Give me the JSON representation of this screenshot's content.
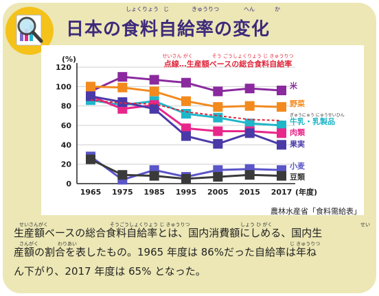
{
  "header": {
    "title": "日本の食料自給率の変化",
    "title_ruby": [
      "しょくりょう",
      "じ",
      "きゅうりつ",
      "へん",
      "か"
    ]
  },
  "source": "農林水産省「食料需給表」",
  "description": {
    "lines": [
      "生産額ベースの総合食料自給率とは、国内消費額にしめる、国内生",
      "産額の割合を表したもの。1965 年度は 86%だった自給率は年ね",
      "ん下がり、2017 年度は 65% となった。"
    ],
    "ruby": [
      [
        "せいさんがく",
        "そうごうしょくりょう じ きゅうりつ",
        "しょう ひ がく",
        "せい"
      ],
      [
        "さんがく",
        "わりあい",
        "じ きゅうりつ"
      ],
      []
    ]
  },
  "chart_data": {
    "type": "line",
    "title": "日本の食料自給率の変化",
    "ylabel": "(%)",
    "xlabel": "(年度)",
    "ylim": [
      0,
      120
    ],
    "yticks": [
      0,
      20,
      40,
      60,
      80,
      100,
      120
    ],
    "x": [
      1965,
      1975,
      1985,
      1995,
      2005,
      2015,
      2017
    ],
    "legend_note": "点線…生産額ベースの総合食料自給率",
    "legend_note_ruby": "せいさん がく　　　　そう ごうしょくりょう じ きゅうりつ",
    "series": [
      {
        "name": "米",
        "color": "#8a2a9e",
        "values": [
          95,
          110,
          107,
          104,
          95,
          98,
          96
        ]
      },
      {
        "name": "野菜",
        "color": "#f28a1e",
        "values": [
          100,
          99,
          95,
          85,
          79,
          80,
          79
        ]
      },
      {
        "name": "牛乳・乳製品",
        "name_ruby": "ぎゅうにゅう にゅうせいひん",
        "color": "#1fb6c9",
        "values": [
          86,
          81,
          85,
          72,
          68,
          62,
          60
        ]
      },
      {
        "name": "肉類",
        "color": "#e8278a",
        "values": [
          90,
          77,
          81,
          57,
          54,
          54,
          52
        ]
      },
      {
        "name": "果実",
        "color": "#4a3aa8",
        "values": [
          90,
          84,
          77,
          49,
          41,
          52,
          40
        ]
      },
      {
        "name": "小麦",
        "color": "#5a55c8",
        "values": [
          28,
          4,
          14,
          7,
          14,
          15,
          14
        ]
      },
      {
        "name": "豆類",
        "color": "#3a3a3a",
        "values": [
          25,
          9,
          8,
          5,
          7,
          9,
          8
        ]
      }
    ],
    "dotted_series": {
      "color": "#e0263a",
      "values": [
        86,
        83,
        82,
        74,
        70,
        66,
        65
      ]
    },
    "grid": true
  },
  "colors": {
    "card": "#ece7b5",
    "title": "#3d2a7a",
    "note": "#e0263a"
  }
}
